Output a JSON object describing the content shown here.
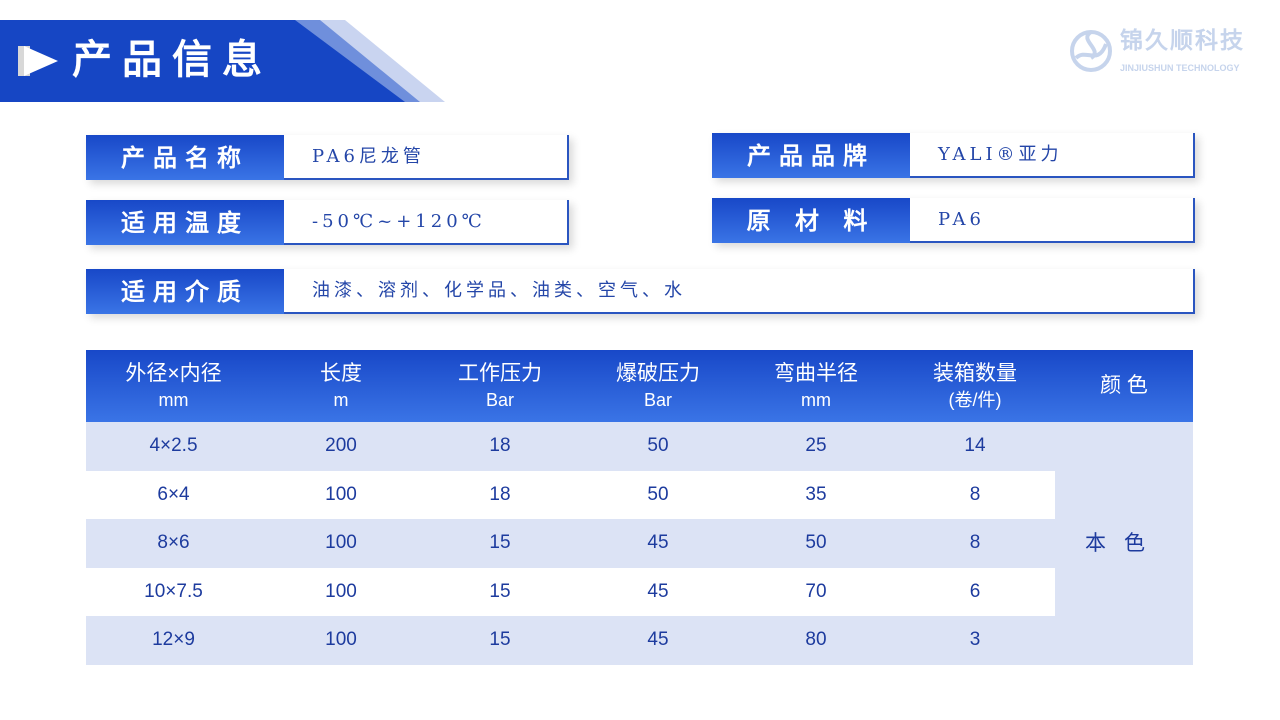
{
  "header": {
    "title": "产品信息",
    "icon": "play-arrow-icon"
  },
  "logo": {
    "name": "锦久顺科技",
    "subtitle": "JINJIUSHUN TECHNOLOGY"
  },
  "info": [
    {
      "label": "产品名称",
      "value": "PA6尼龙管"
    },
    {
      "label": "产品品牌",
      "value": "YALI®亚力"
    },
    {
      "label": "适用温度",
      "value": "-50℃~+120℃"
    },
    {
      "label": "原 材 料",
      "value": "PA6"
    },
    {
      "label": "适用介质",
      "value": "油漆、溶剂、化学品、油类、空气、水"
    }
  ],
  "table": {
    "headers": [
      {
        "t": "外径×内径",
        "u": "mm"
      },
      {
        "t": "长度",
        "u": "m"
      },
      {
        "t": "工作压力",
        "u": "Bar"
      },
      {
        "t": "爆破压力",
        "u": "Bar"
      },
      {
        "t": "弯曲半径",
        "u": "mm"
      },
      {
        "t": "装箱数量",
        "u": "(卷/件)"
      },
      {
        "t": "颜 色",
        "u": ""
      }
    ],
    "rows": [
      [
        "4×2.5",
        "200",
        "18",
        "50",
        "25",
        "14"
      ],
      [
        "6×4",
        "100",
        "18",
        "50",
        "35",
        "8"
      ],
      [
        "8×6",
        "100",
        "15",
        "45",
        "50",
        "8"
      ],
      [
        "10×7.5",
        "100",
        "15",
        "45",
        "70",
        "6"
      ],
      [
        "12×9",
        "100",
        "15",
        "45",
        "80",
        "3"
      ]
    ],
    "color": "本色"
  },
  "colors": {
    "primary": "#1848c8",
    "row_alt": "#dce3f5",
    "text": "#1d3b9e"
  }
}
